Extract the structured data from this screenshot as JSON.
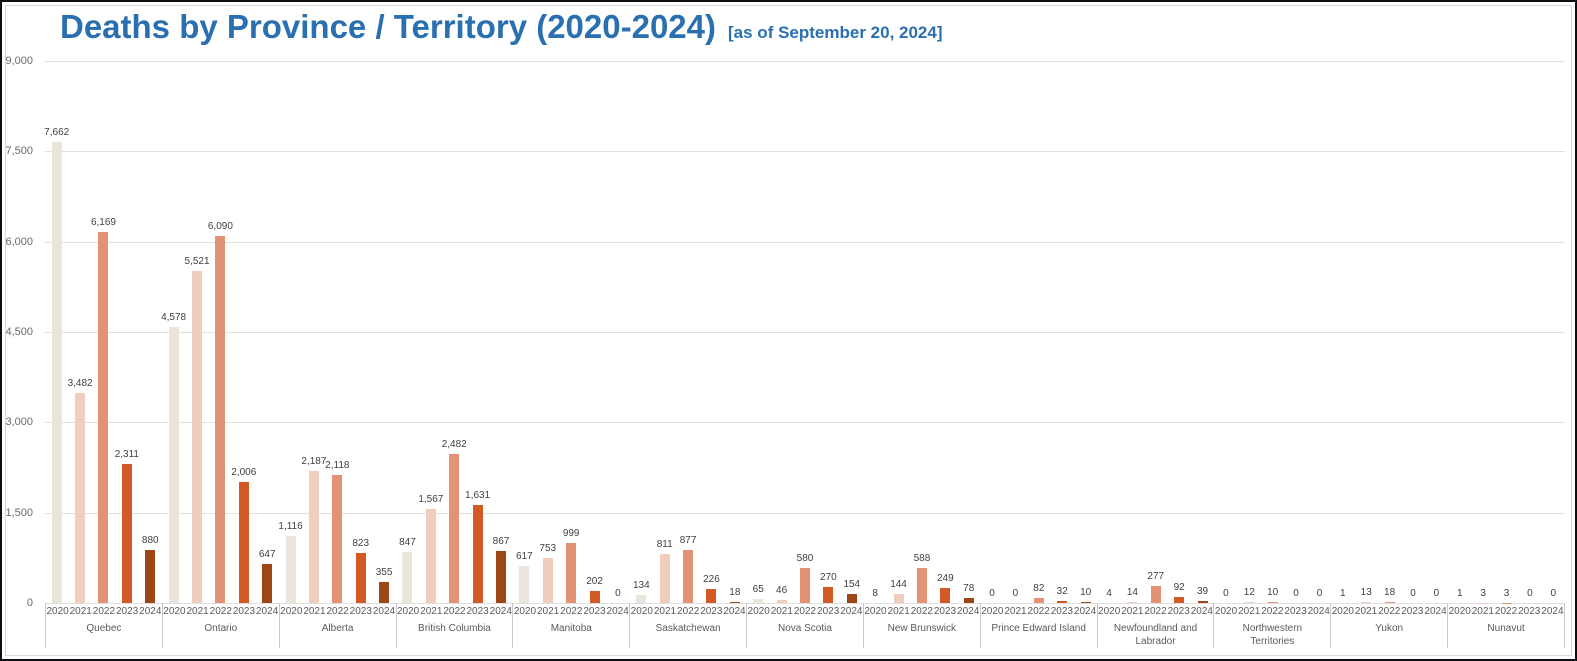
{
  "title": "Deaths by Province / Territory (2020-2024)",
  "subtitle": "[as of September 20, 2024]",
  "accent_color": "#2a6fb0",
  "chart_data": {
    "type": "bar",
    "title": "Deaths by Province / Territory (2020-2024)",
    "subtitle": "[as of September 20, 2024]",
    "ylabel": "",
    "xlabel": "",
    "ylim": [
      0,
      9000
    ],
    "grid": true,
    "legend": false,
    "y_ticks": [
      0,
      1500,
      3000,
      4500,
      6000,
      7500,
      9000
    ],
    "y_tick_labels": [
      "0",
      "1,500",
      "3,000",
      "4,500",
      "6,000",
      "7,500",
      "9,000"
    ],
    "years": [
      "2020",
      "2021",
      "2022",
      "2023",
      "2024"
    ],
    "year_colors": [
      "#EBE4DB",
      "#F0CDBD",
      "#E29275",
      "#D35A23",
      "#9D4718"
    ],
    "groups": [
      {
        "province": "Quebec",
        "values": [
          7662,
          3482,
          6169,
          2311,
          880
        ],
        "labels": [
          "7,662",
          "3,482",
          "6,169",
          "2,311",
          "880"
        ]
      },
      {
        "province": "Ontario",
        "values": [
          4578,
          5521,
          6090,
          2006,
          647
        ],
        "labels": [
          "4,578",
          "5,521",
          "6,090",
          "2,006",
          "647"
        ]
      },
      {
        "province": "Alberta",
        "values": [
          1116,
          2187,
          2118,
          823,
          355
        ],
        "labels": [
          "1,116",
          "2,187",
          "2,118",
          "823",
          "355"
        ]
      },
      {
        "province": "British Columbia",
        "values": [
          847,
          1567,
          2482,
          1631,
          867
        ],
        "labels": [
          "847",
          "1,567",
          "2,482",
          "1,631",
          "867"
        ]
      },
      {
        "province": "Manitoba",
        "values": [
          617,
          753,
          999,
          202,
          0
        ],
        "labels": [
          "617",
          "753",
          "999",
          "202",
          "0"
        ]
      },
      {
        "province": "Saskatchewan",
        "values": [
          134,
          811,
          877,
          226,
          18
        ],
        "labels": [
          "134",
          "811",
          "877",
          "226",
          "18"
        ]
      },
      {
        "province": "Nova Scotia",
        "values": [
          65,
          46,
          580,
          270,
          154
        ],
        "labels": [
          "65",
          "46",
          "580",
          "270",
          "154"
        ]
      },
      {
        "province": "New Brunswick",
        "values": [
          8,
          144,
          588,
          249,
          78
        ],
        "labels": [
          "8",
          "144",
          "588",
          "249",
          "78"
        ]
      },
      {
        "province": "Prince Edward Island",
        "values": [
          0,
          0,
          82,
          32,
          10
        ],
        "labels": [
          "0",
          "0",
          "82",
          "32",
          "10"
        ]
      },
      {
        "province": "Newfoundland and Labrador",
        "values": [
          4,
          14,
          277,
          92,
          39
        ],
        "labels": [
          "4",
          "14",
          "277",
          "92",
          "39"
        ]
      },
      {
        "province": "Northwestern Territories",
        "values": [
          0,
          12,
          10,
          0,
          0
        ],
        "labels": [
          "0",
          "12",
          "10",
          "0",
          "0"
        ]
      },
      {
        "province": "Yukon",
        "values": [
          1,
          13,
          18,
          0,
          0
        ],
        "labels": [
          "1",
          "13",
          "18",
          "0",
          "0"
        ]
      },
      {
        "province": "Nunavut",
        "values": [
          1,
          3,
          3,
          0,
          0
        ],
        "labels": [
          "1",
          "3",
          "3",
          "0",
          "0"
        ]
      }
    ]
  }
}
